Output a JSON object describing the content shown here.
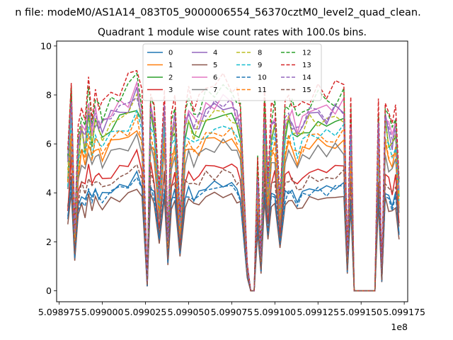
{
  "suptitle": "n file: modeM0/AS1A14_083T05_9000006554_56370cztM0_level2_quad_clean.",
  "chart_data": {
    "type": "line",
    "title": "Quadrant 1 module wise count rates with 100.0s bins.",
    "xlabel": "",
    "ylabel": "",
    "x_offset_label": "1e8",
    "xlim": [
      5.0989735,
      5.099177
    ],
    "ylim": [
      -0.45,
      10.2
    ],
    "xticks": [
      5.098975,
      5.099,
      5.099025,
      5.09905,
      5.099075,
      5.0991,
      5.099125,
      5.09915,
      5.099175
    ],
    "xtick_labels": [
      "5.098975",
      "5.099000",
      "5.099025",
      "5.099050",
      "5.099075",
      "5.099100",
      "5.099125",
      "5.099150",
      "5.099175"
    ],
    "yticks": [
      0,
      2,
      4,
      6,
      8,
      10
    ],
    "ytick_labels": [
      "0",
      "2",
      "4",
      "6",
      "8",
      "10"
    ],
    "grid": false,
    "legend": {
      "placement": "top-center",
      "columns": 4
    },
    "x": [
      5.09898,
      5.098982,
      5.098984,
      5.098986,
      5.098988,
      5.09899,
      5.098992,
      5.098994,
      5.098996,
      5.098998,
      5.099,
      5.099005,
      5.09901,
      5.099015,
      5.09902,
      5.099023,
      5.099026,
      5.099028,
      5.09903,
      5.099033,
      5.099036,
      5.099038,
      5.09904,
      5.099042,
      5.099045,
      5.099048,
      5.09905,
      5.099053,
      5.099056,
      5.09906,
      5.099065,
      5.09907,
      5.099075,
      5.099078,
      5.09908,
      5.099084,
      5.099086,
      5.099088,
      5.09909,
      5.099092,
      5.099094,
      5.099096,
      5.099098,
      5.0991,
      5.099103,
      5.099106,
      5.099108,
      5.09911,
      5.099113,
      5.099116,
      5.09912,
      5.099125,
      5.09913,
      5.099135,
      5.09914,
      5.099142,
      5.099144,
      5.099146,
      5.099148,
      5.09915,
      5.099154,
      5.099158,
      5.09916,
      5.099162,
      5.099164,
      5.099166,
      5.099168,
      5.09917,
      5.099172
    ],
    "series": [
      {
        "name": "0",
        "color": "#1f77b4",
        "dash": "solid",
        "base": 3.9
      },
      {
        "name": "1",
        "color": "#ff7f0e",
        "dash": "solid",
        "base": 5.6
      },
      {
        "name": "2",
        "color": "#2ca02c",
        "dash": "solid",
        "base": 6.4
      },
      {
        "name": "3",
        "color": "#d62728",
        "dash": "solid",
        "base": 4.6
      },
      {
        "name": "4",
        "color": "#9467bd",
        "dash": "solid",
        "base": 6.7
      },
      {
        "name": "5",
        "color": "#8c564b",
        "dash": "solid",
        "base": 3.5
      },
      {
        "name": "6",
        "color": "#e377c2",
        "dash": "solid",
        "base": 6.9
      },
      {
        "name": "7",
        "color": "#7f7f7f",
        "dash": "solid",
        "base": 5.3
      },
      {
        "name": "8",
        "color": "#bcbd22",
        "dash": "dashed",
        "base": 6.5
      },
      {
        "name": "9",
        "color": "#17becf",
        "dash": "dashed",
        "base": 6.0
      },
      {
        "name": "10",
        "color": "#1f77b4",
        "dash": "dashed",
        "base": 3.8
      },
      {
        "name": "11",
        "color": "#ff7f0e",
        "dash": "dashed",
        "base": 5.8
      },
      {
        "name": "12",
        "color": "#2ca02c",
        "dash": "dashed",
        "base": 7.3
      },
      {
        "name": "13",
        "color": "#d62728",
        "dash": "dashed",
        "base": 7.6
      },
      {
        "name": "14",
        "color": "#9467bd",
        "dash": "dashed",
        "base": 6.8
      },
      {
        "name": "15",
        "color": "#8c564b",
        "dash": "dashed",
        "base": 4.3
      }
    ],
    "profile": [
      0.75,
      1.15,
      0.35,
      0.85,
      1.0,
      0.9,
      1.1,
      0.95,
      1.05,
      1.0,
      0.98,
      1.05,
      1.08,
      1.12,
      1.2,
      1.05,
      0.05,
      1.1,
      1.0,
      0.55,
      1.08,
      0.3,
      0.95,
      1.02,
      0.4,
      1.0,
      1.05,
      0.98,
      1.02,
      1.08,
      1.1,
      1.12,
      1.1,
      1.05,
      1.0,
      0.15,
      0.0,
      0.0,
      0.7,
      0.2,
      1.05,
      0.6,
      0.98,
      1.02,
      0.5,
      1.0,
      1.05,
      1.02,
      0.95,
      1.0,
      1.05,
      1.08,
      1.05,
      1.08,
      1.1,
      0.2,
      1.0,
      0.0,
      0.0,
      0.0,
      0.0,
      0.0,
      1.0,
      0.1,
      1.05,
      0.95,
      0.9,
      1.0,
      0.6
    ],
    "jitter": [
      0,
      0.3,
      -0.2,
      0.25,
      -0.1,
      0.35,
      -0.3,
      0.2,
      0.1,
      -0.25,
      0.3,
      -0.15,
      0.2,
      -0.2,
      0.3,
      0.15,
      0,
      -0.2,
      0.25,
      0.1,
      -0.3,
      0.2,
      -0.1,
      0.3,
      0.05,
      -0.2,
      0.25,
      -0.25,
      0.15,
      -0.1,
      0.3,
      -0.2,
      0.2,
      0.1,
      -0.25,
      0.05,
      0,
      0,
      0.2,
      0.05,
      -0.2,
      0.15,
      0.25,
      -0.1,
      0.1,
      0.3,
      -0.2,
      0.2,
      -0.15,
      0.25,
      0.1,
      -0.2,
      0.3,
      -0.1,
      0.2,
      0.05,
      -0.25,
      0,
      0,
      0,
      0,
      0,
      0.2,
      0.05,
      -0.2,
      0.3,
      -0.1,
      0.2,
      0.05
    ]
  }
}
